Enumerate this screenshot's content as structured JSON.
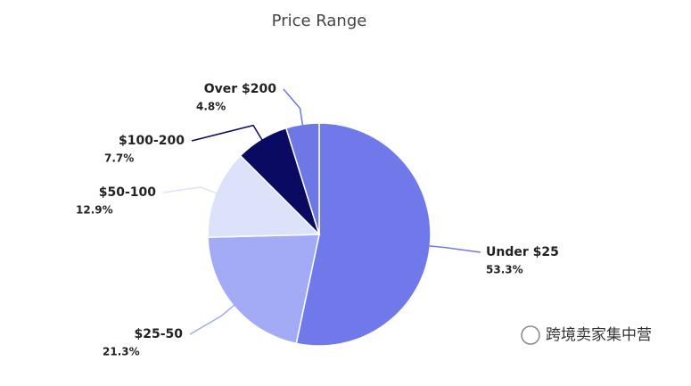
{
  "chart_data": {
    "type": "pie",
    "title": "Price Range",
    "categories": [
      "Under $25",
      "$25-50",
      "$50-100",
      "$100-200",
      "Over $200"
    ],
    "values": [
      53.3,
      21.3,
      12.9,
      7.7,
      4.8
    ],
    "value_labels": [
      "53.3%",
      "21.3%",
      "12.9%",
      "7.7%",
      "4.8%"
    ],
    "colors": [
      "#7079ea",
      "#a3abf7",
      "#dde2fb",
      "#0b0a62",
      "#6e77e6"
    ]
  },
  "watermark": "跨境卖家集中营"
}
